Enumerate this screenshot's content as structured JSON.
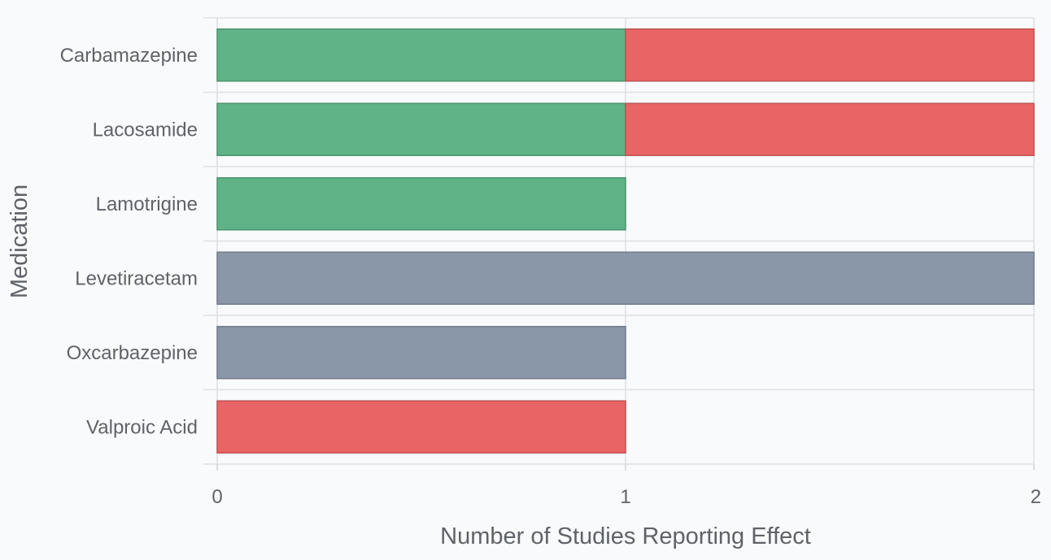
{
  "chart_data": {
    "type": "bar",
    "orientation": "horizontal",
    "stacked": true,
    "categories": [
      "Carbamazepine",
      "Lacosamide",
      "Lamotrigine",
      "Levetiracetam",
      "Oxcarbazepine",
      "Valproic Acid"
    ],
    "series": [
      {
        "color": "#5fb386",
        "values": [
          1,
          1,
          1,
          0,
          0,
          0
        ]
      },
      {
        "color": "#8a97a8",
        "values": [
          0,
          0,
          0,
          2,
          1,
          0
        ]
      },
      {
        "color": "#e96465",
        "values": [
          1,
          1,
          0,
          0,
          0,
          1
        ]
      }
    ],
    "xlabel": "Number of Studies Reporting Effect",
    "ylabel": "Medication",
    "xlim": [
      0,
      2
    ],
    "x_ticks": [
      0,
      1,
      2
    ],
    "grid": true,
    "legend": "none"
  }
}
